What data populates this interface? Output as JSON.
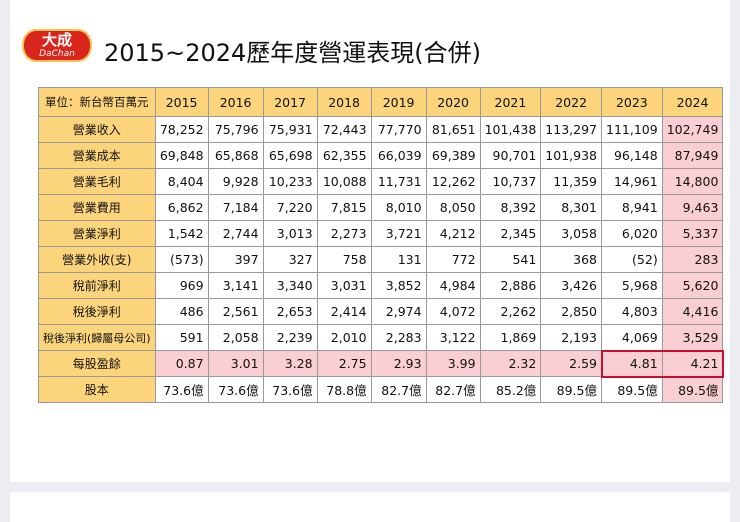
{
  "header": {
    "logo": "大成",
    "logo_sub": "DaChan",
    "title": "2015~2024歷年度營運表現(合併)"
  },
  "table": {
    "header": [
      "單位：新台幣百萬元",
      "2015",
      "2016",
      "2017",
      "2018",
      "2019",
      "2020",
      "2021",
      "2022",
      "2023",
      "2024"
    ],
    "rows": [
      [
        "營業收入",
        "78,252",
        "75,796",
        "75,931",
        "72,443",
        "77,770",
        "81,651",
        "101,438",
        "113,297",
        "111,109",
        "102,749"
      ],
      [
        "營業成本",
        "69,848",
        "65,868",
        "65,698",
        "62,355",
        "66,039",
        "69,389",
        "90,701",
        "101,938",
        "96,148",
        "87,949"
      ],
      [
        "營業毛利",
        "8,404",
        "9,928",
        "10,233",
        "10,088",
        "11,731",
        "12,262",
        "10,737",
        "11,359",
        "14,961",
        "14,800"
      ],
      [
        "營業費用",
        "6,862",
        "7,184",
        "7,220",
        "7,815",
        "8,010",
        "8,050",
        "8,392",
        "8,301",
        "8,941",
        "9,463"
      ],
      [
        "營業淨利",
        "1,542",
        "2,744",
        "3,013",
        "2,273",
        "3,721",
        "4,212",
        "2,345",
        "3,058",
        "6,020",
        "5,337"
      ],
      [
        "營業外收(支)",
        "(573)",
        "397",
        "327",
        "758",
        "131",
        "772",
        "541",
        "368",
        "(52)",
        "283"
      ],
      [
        "稅前淨利",
        "969",
        "3,141",
        "3,340",
        "3,031",
        "3,852",
        "4,984",
        "2,886",
        "3,426",
        "5,968",
        "5,620"
      ],
      [
        "稅後淨利",
        "486",
        "2,561",
        "2,653",
        "2,414",
        "2,974",
        "4,072",
        "2,262",
        "2,850",
        "4,803",
        "4,416"
      ],
      [
        "稅後淨利(歸屬母公司)",
        "591",
        "2,058",
        "2,239",
        "2,010",
        "2,283",
        "3,122",
        "1,869",
        "2,193",
        "4,069",
        "3,529"
      ],
      [
        "每股盈餘",
        "0.87",
        "3.01",
        "3.28",
        "2.75",
        "2.93",
        "3.99",
        "2.32",
        "2.59",
        "4.81",
        "4.21"
      ],
      [
        "股本",
        "73.6億",
        "73.6億",
        "73.6億",
        "78.8億",
        "82.7億",
        "82.7億",
        "85.2億",
        "89.5億",
        "89.5億",
        "89.5億"
      ]
    ]
  }
}
